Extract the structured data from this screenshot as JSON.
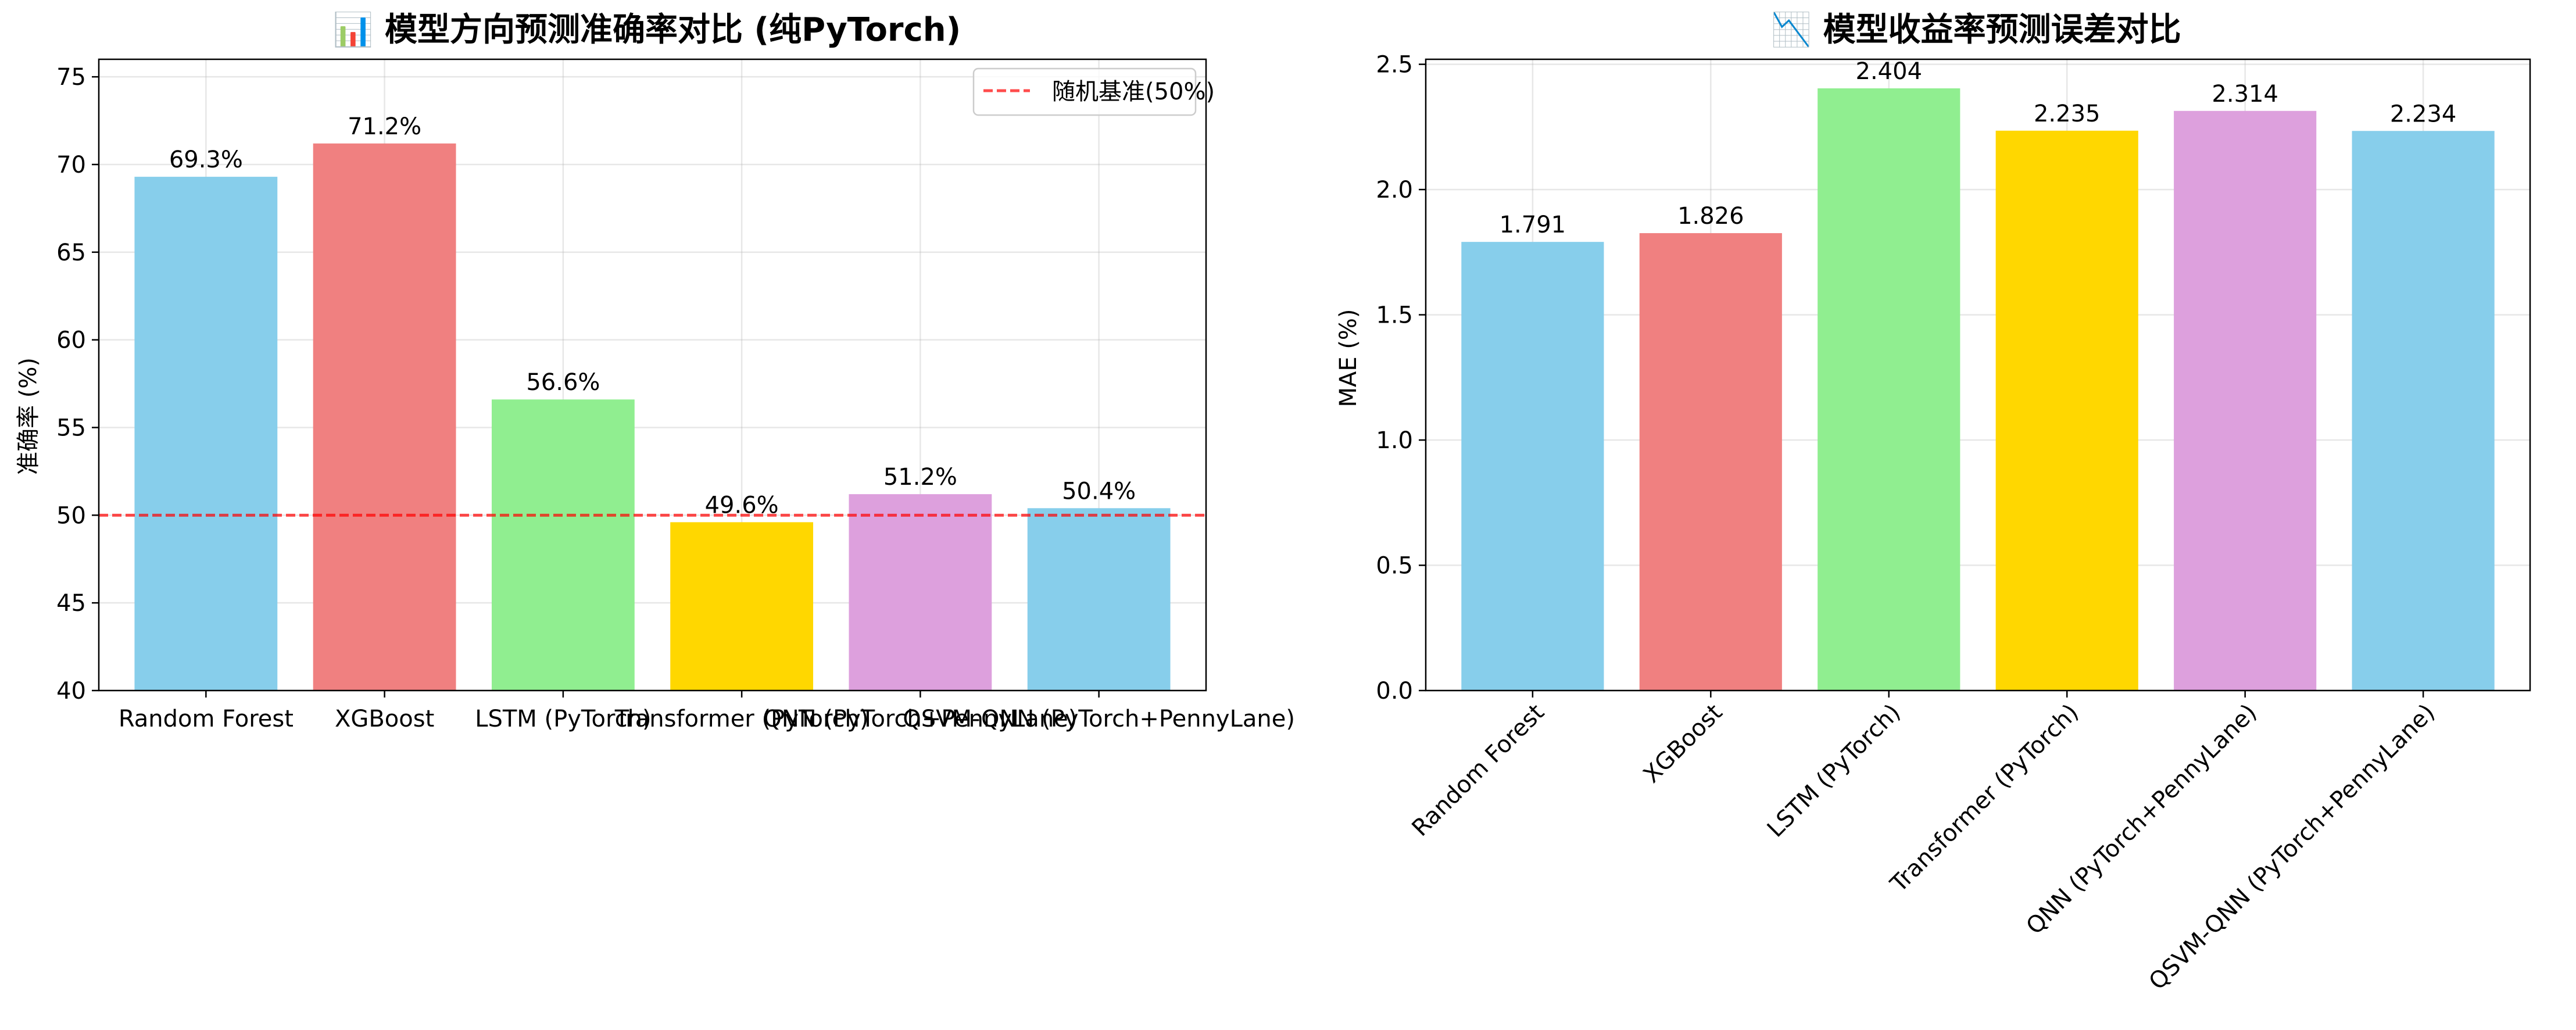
{
  "chart_data": [
    {
      "type": "bar",
      "title": "📊 模型方向预测准确率对比 (纯PyTorch)",
      "ylabel": "准确率 (%)",
      "xlabel": "",
      "categories": [
        "Random Forest",
        "XGBoost",
        "LSTM (PyTorch)",
        "Transformer (PyTorch)",
        "QNN (PyTorch+PennyLane)",
        "QSVM-QNN (PyTorch+PennyLane)"
      ],
      "values": [
        69.3,
        71.2,
        56.6,
        49.6,
        51.2,
        50.4
      ],
      "value_labels": [
        "69.3%",
        "71.2%",
        "56.6%",
        "49.6%",
        "51.2%",
        "50.4%"
      ],
      "colors": [
        "#87CEEB",
        "#F08080",
        "#90EE90",
        "#FFD700",
        "#DDA0DD",
        "#87CEEB"
      ],
      "ylim": [
        40,
        76
      ],
      "yticks": [
        40,
        45,
        50,
        55,
        60,
        65,
        70,
        75
      ],
      "reference_line": {
        "value": 50,
        "label": "随机基准(50%)",
        "color": "#FF0000"
      },
      "grid": true,
      "legend_position": "top-right",
      "xtick_rotation": 0
    },
    {
      "type": "bar",
      "title": "📉 模型收益率预测误差对比",
      "ylabel": "MAE (%)",
      "xlabel": "",
      "categories": [
        "Random Forest",
        "XGBoost",
        "LSTM (PyTorch)",
        "Transformer (PyTorch)",
        "QNN (PyTorch+PennyLane)",
        "QSVM-QNN (PyTorch+PennyLane)"
      ],
      "values": [
        1.791,
        1.826,
        2.404,
        2.235,
        2.314,
        2.234
      ],
      "value_labels": [
        "1.791",
        "1.826",
        "2.404",
        "2.235",
        "2.314",
        "2.234"
      ],
      "colors": [
        "#87CEEB",
        "#F08080",
        "#90EE90",
        "#FFD700",
        "#DDA0DD",
        "#87CEEB"
      ],
      "ylim": [
        0,
        2.52
      ],
      "yticks": [
        0.0,
        0.5,
        1.0,
        1.5,
        2.0,
        2.5
      ],
      "ytick_labels": [
        "0.0",
        "0.5",
        "1.0",
        "1.5",
        "2.0",
        "2.5"
      ],
      "grid": true,
      "xtick_rotation": 45
    }
  ]
}
